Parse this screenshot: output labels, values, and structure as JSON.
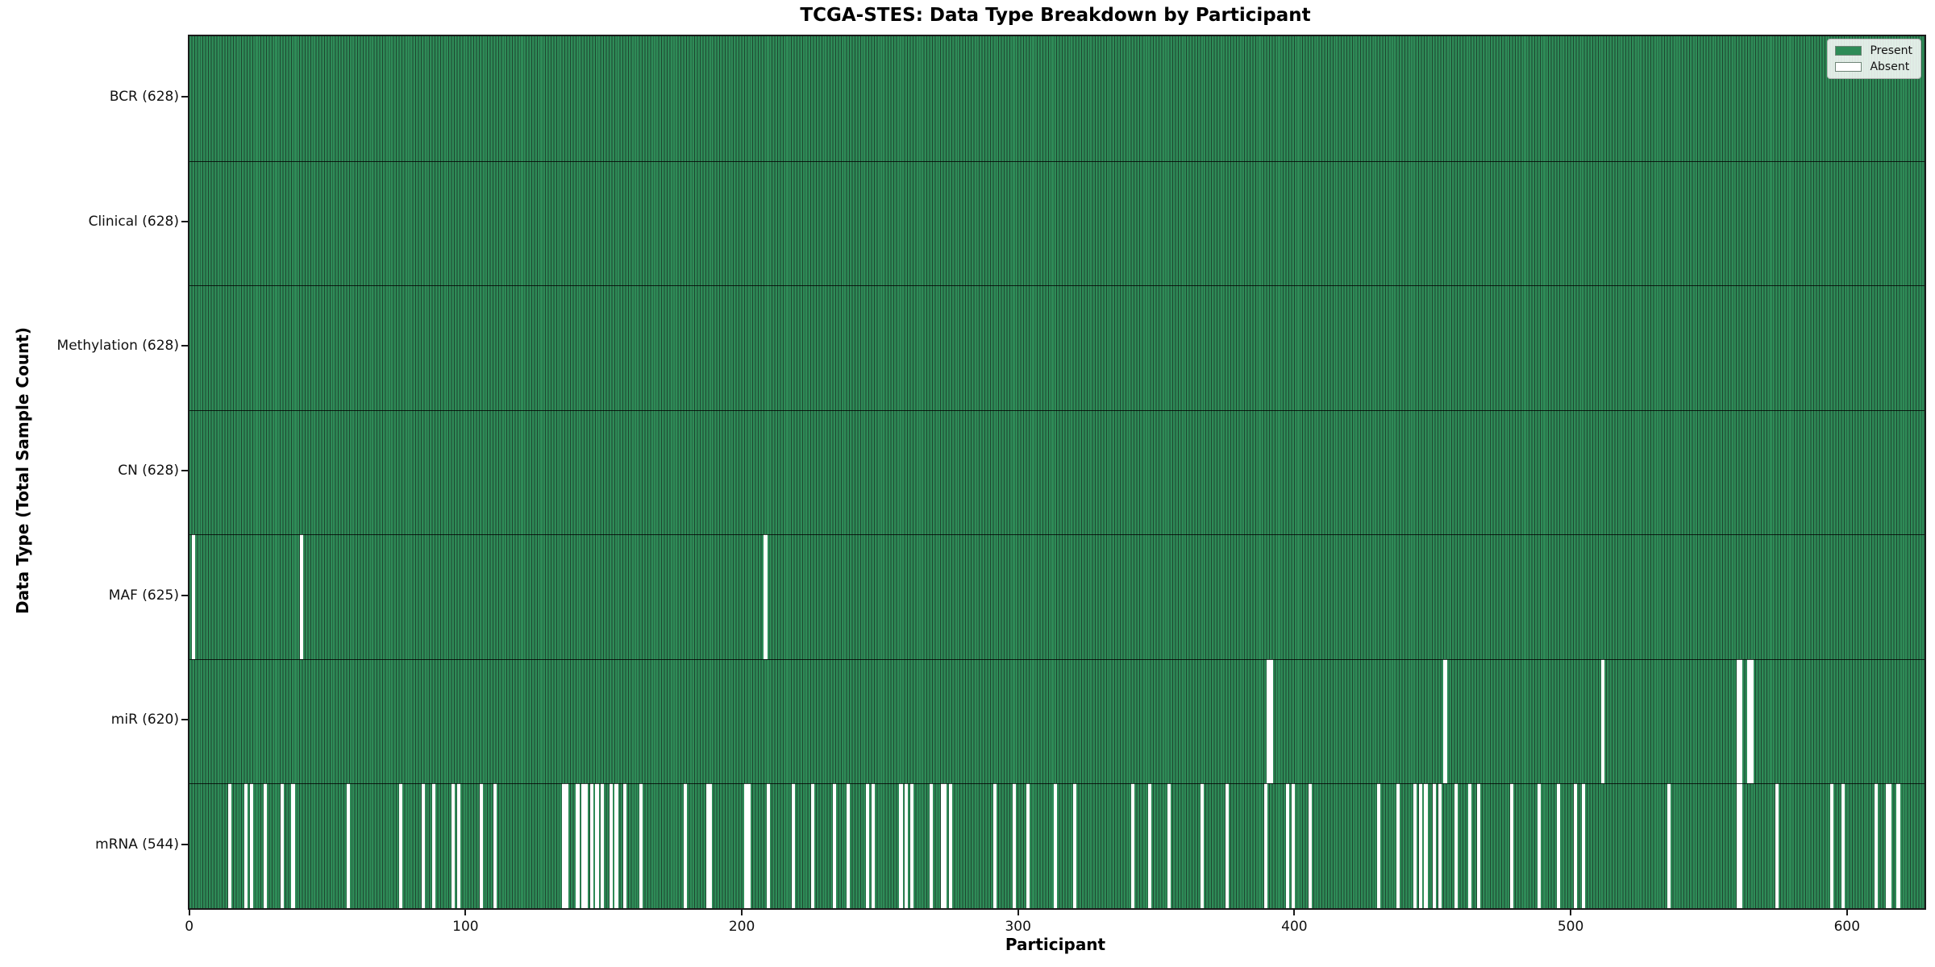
{
  "figure": {
    "title": "TCGA-STES: Data Type Breakdown by Participant",
    "xlabel": "Participant",
    "ylabel": "Data Type (Total Sample Count)"
  },
  "legend": {
    "items": [
      {
        "label": "Present",
        "color": "#2e8b57"
      },
      {
        "label": "Absent",
        "color": "#ffffff"
      }
    ]
  },
  "colors": {
    "present": "#2e8b57",
    "absent": "#ffffff",
    "bar_edge": "#1e4630",
    "spine": "#1a1a1a"
  },
  "chart_data": {
    "type": "heatmap",
    "title": "TCGA-STES: Data Type Breakdown by Participant",
    "xlabel": "Participant",
    "ylabel": "Data Type (Total Sample Count)",
    "legend_entries": [
      "Present",
      "Absent"
    ],
    "legend_position": "upper right",
    "n_participants": 628,
    "x_ticks": [
      0,
      100,
      200,
      300,
      400,
      500,
      600
    ],
    "x_range": [
      0,
      627
    ],
    "grid": false,
    "rows": [
      {
        "label": "BCR (628)",
        "data_type": "BCR",
        "present_count": 628,
        "absent_participants": []
      },
      {
        "label": "Clinical (628)",
        "data_type": "Clinical",
        "present_count": 628,
        "absent_participants": []
      },
      {
        "label": "Methylation (628)",
        "data_type": "Methylation",
        "present_count": 628,
        "absent_participants": []
      },
      {
        "label": "CN (628)",
        "data_type": "CN",
        "present_count": 628,
        "absent_participants": []
      },
      {
        "label": "MAF (625)",
        "data_type": "MAF",
        "present_count": 625,
        "absent_participants": [
          1,
          40,
          208
        ]
      },
      {
        "label": "miR (620)",
        "data_type": "miR",
        "present_count": 620,
        "absent_participants": [
          390,
          391,
          454,
          511,
          560,
          561,
          564,
          565
        ]
      },
      {
        "label": "mRNA (544)",
        "data_type": "mRNA",
        "present_count": 544,
        "absent_participants": [
          14,
          20,
          22,
          27,
          33,
          37,
          57,
          76,
          84,
          88,
          95,
          97,
          105,
          110,
          135,
          136,
          140,
          142,
          143,
          145,
          147,
          149,
          152,
          154,
          157,
          163,
          179,
          187,
          188,
          201,
          202,
          209,
          218,
          225,
          233,
          238,
          245,
          247,
          257,
          259,
          261,
          268,
          272,
          273,
          275,
          291,
          298,
          303,
          313,
          320,
          341,
          347,
          354,
          366,
          375,
          389,
          397,
          399,
          405,
          430,
          437,
          443,
          445,
          447,
          450,
          452,
          458,
          463,
          466,
          478,
          488,
          495,
          501,
          504,
          535,
          560,
          561,
          574,
          594,
          598,
          610,
          614,
          615,
          618
        ]
      }
    ]
  }
}
